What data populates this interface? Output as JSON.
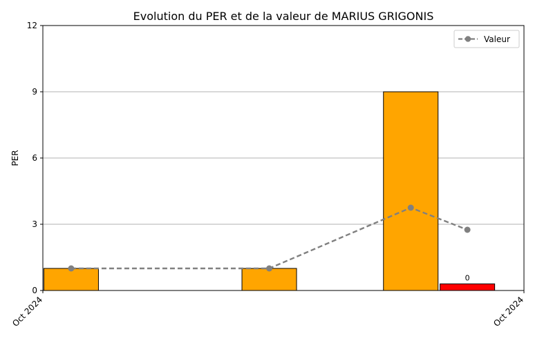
{
  "chart_data": {
    "type": "bar",
    "title": "Evolution du PER et de la valeur de MARIUS GRIGONIS",
    "ylabel": "PER",
    "xlabel": "",
    "ylim": [
      0,
      12
    ],
    "yticks": [
      0,
      3,
      6,
      9,
      12
    ],
    "xtick_labels": [
      "Oct 2024",
      "Oct 2024"
    ],
    "grid": "horizontal",
    "legend_position": "top-right",
    "bars": [
      {
        "x": 1,
        "value": 1,
        "color": "#FFA500",
        "label": ""
      },
      {
        "x": 8,
        "value": 1,
        "color": "#FFA500",
        "label": ""
      },
      {
        "x": 13,
        "value": 9,
        "color": "#FFA500",
        "label": ""
      },
      {
        "x": 15,
        "value": 0.3,
        "color": "#FF0000",
        "label": "0"
      }
    ],
    "series": [
      {
        "name": "Valeur",
        "type": "line",
        "style": "dashed",
        "marker": "circle",
        "color": "#808080",
        "x": [
          1,
          8,
          13,
          15
        ],
        "values": [
          1,
          1,
          3.75,
          2.75
        ]
      }
    ]
  }
}
